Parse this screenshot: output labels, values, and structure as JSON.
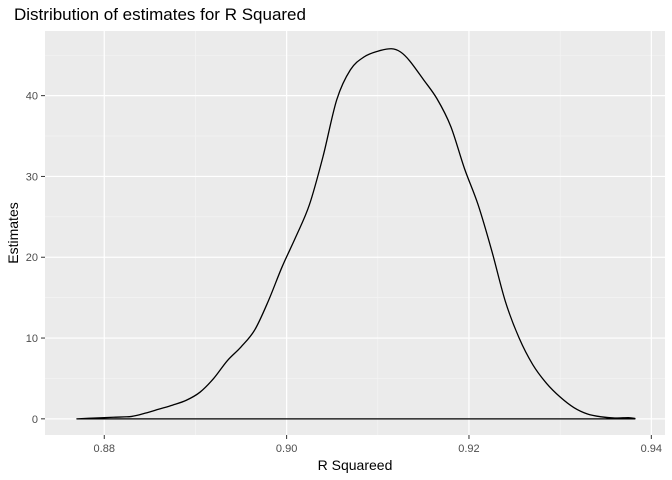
{
  "chart_data": {
    "type": "area",
    "title": "Distribution of estimates for R Squared",
    "xlabel": "R Squareed",
    "ylabel": "Estimates",
    "xlim": [
      0.8735,
      0.9415
    ],
    "ylim": [
      -2.0,
      48.0
    ],
    "x_ticks": [
      0.88,
      0.9,
      0.92,
      0.94
    ],
    "x_tick_labels": [
      "0.88",
      "0.90",
      "0.92",
      "0.94"
    ],
    "y_ticks": [
      0,
      10,
      20,
      30,
      40
    ],
    "y_tick_labels": [
      "0",
      "10",
      "20",
      "30",
      "40"
    ],
    "x_minor_ticks": [
      0.87,
      0.89,
      0.91,
      0.93
    ],
    "y_minor_ticks": [
      5,
      15,
      25,
      35,
      45
    ],
    "grid": true,
    "legend": "none",
    "series": [
      {
        "x": [
          0.877,
          0.879,
          0.881,
          0.883,
          0.8845,
          0.886,
          0.8875,
          0.889,
          0.8905,
          0.892,
          0.8935,
          0.895,
          0.8965,
          0.898,
          0.8995,
          0.901,
          0.9025,
          0.904,
          0.9055,
          0.907,
          0.9085,
          0.91,
          0.9115,
          0.9125,
          0.9135,
          0.915,
          0.9165,
          0.918,
          0.9195,
          0.921,
          0.9225,
          0.924,
          0.9255,
          0.927,
          0.9285,
          0.93,
          0.9315,
          0.933,
          0.9345,
          0.936,
          0.9375,
          0.9382
        ],
        "y": [
          0.0,
          0.1,
          0.2,
          0.3,
          0.7,
          1.2,
          1.7,
          2.3,
          3.3,
          5.0,
          7.2,
          8.9,
          11.0,
          14.6,
          18.8,
          22.5,
          26.5,
          32.5,
          39.5,
          43.2,
          44.8,
          45.5,
          45.8,
          45.4,
          44.3,
          42.0,
          39.6,
          36.2,
          31.0,
          26.5,
          20.8,
          14.5,
          10.0,
          6.7,
          4.4,
          2.7,
          1.4,
          0.6,
          0.25,
          0.1,
          0.15,
          0.05
        ]
      }
    ]
  }
}
